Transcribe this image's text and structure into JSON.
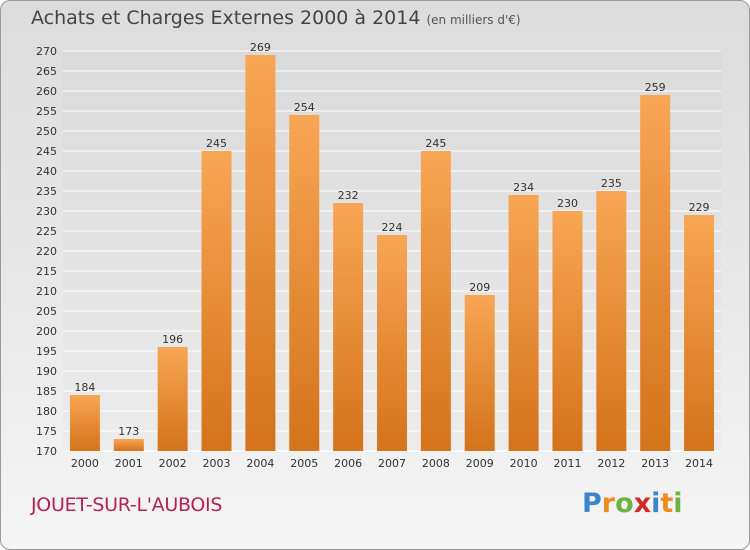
{
  "title": "Achats et Charges Externes 2000 à 2014",
  "subtitle": "(en milliers d'€)",
  "city": "JOUET-SUR-L'AUBOIS",
  "logo": {
    "letters": [
      "P",
      "r",
      "o",
      "x",
      "i",
      "t",
      "i"
    ],
    "colors": [
      "#3a86c8",
      "#f08c1e",
      "#6cb43f",
      "#d22a2a",
      "#3a86c8",
      "#f08c1e",
      "#6cb43f"
    ]
  },
  "colors": {
    "bar_light": "#f8a654",
    "bar_dark": "#d4731a",
    "city": "#b5234f"
  },
  "chart_data": {
    "type": "bar",
    "title": "Achats et Charges Externes 2000 à 2014",
    "subtitle": "(en milliers d'€)",
    "categories": [
      "2000",
      "2001",
      "2002",
      "2003",
      "2004",
      "2005",
      "2006",
      "2007",
      "2008",
      "2009",
      "2010",
      "2011",
      "2012",
      "2013",
      "2014"
    ],
    "values": [
      184,
      173,
      196,
      245,
      269,
      254,
      232,
      224,
      245,
      209,
      234,
      230,
      235,
      259,
      229
    ],
    "value_labels": [
      "184",
      "173",
      "196",
      "245",
      "269",
      "254",
      "232",
      "224",
      "245",
      "209",
      "234",
      "230",
      "235",
      "259",
      "229"
    ],
    "ylim": [
      170,
      270
    ],
    "yticks": [
      "170",
      "175",
      "180",
      "185",
      "190",
      "195",
      "200",
      "205",
      "210",
      "215",
      "220",
      "225",
      "230",
      "235",
      "240",
      "245",
      "250",
      "255",
      "260",
      "265",
      "270"
    ],
    "grid": true
  }
}
